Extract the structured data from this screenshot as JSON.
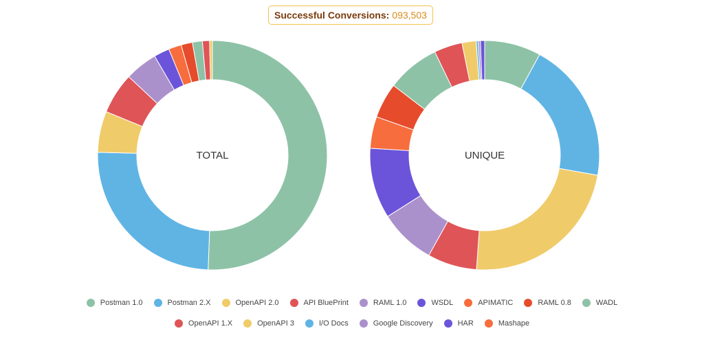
{
  "banner": {
    "label": "Successful Conversions:",
    "value": "093,503"
  },
  "chart_data": [
    {
      "type": "pie",
      "title": "TOTAL",
      "slices": [
        {
          "label": "Postman 1.0",
          "value": 50.6,
          "color": "#8dc2a6"
        },
        {
          "label": "Postman 2.X",
          "value": 24.8,
          "color": "#5fb4e4"
        },
        {
          "label": "OpenAPI 2.0",
          "value": 5.8,
          "color": "#f0cb6a"
        },
        {
          "label": "API BluePrint",
          "value": 5.8,
          "color": "#df5457"
        },
        {
          "label": "RAML 1.0",
          "value": 4.6,
          "color": "#ab91cc"
        },
        {
          "label": "WSDL",
          "value": 2.2,
          "color": "#6b54d9"
        },
        {
          "label": "APIMATIC",
          "value": 1.8,
          "color": "#f76d3d"
        },
        {
          "label": "RAML 0.8",
          "value": 1.6,
          "color": "#e64c2c"
        },
        {
          "label": "WADL",
          "value": 1.4,
          "color": "#8dc2a6"
        },
        {
          "label": "OpenAPI 1.X",
          "value": 1.0,
          "color": "#df5457"
        },
        {
          "label": "OpenAPI 3",
          "value": 0.4,
          "color": "#f0cb6a"
        }
      ]
    },
    {
      "type": "pie",
      "title": "UNIQUE",
      "slices": [
        {
          "label": "Postman 1.0",
          "value": 8.0,
          "color": "#8dc2a6"
        },
        {
          "label": "Postman 2.X",
          "value": 20.0,
          "color": "#5fb4e4"
        },
        {
          "label": "OpenAPI 2.0",
          "value": 23.5,
          "color": "#f0cb6a"
        },
        {
          "label": "API BluePrint",
          "value": 7.0,
          "color": "#df5457"
        },
        {
          "label": "RAML 1.0",
          "value": 8.0,
          "color": "#ab91cc"
        },
        {
          "label": "WSDL",
          "value": 10.0,
          "color": "#6b54d9"
        },
        {
          "label": "APIMATIC",
          "value": 4.5,
          "color": "#f76d3d"
        },
        {
          "label": "RAML 0.8",
          "value": 5.0,
          "color": "#e64c2c"
        },
        {
          "label": "WADL",
          "value": 7.5,
          "color": "#8dc2a6"
        },
        {
          "label": "OpenAPI 1.X",
          "value": 4.0,
          "color": "#df5457"
        },
        {
          "label": "OpenAPI 3",
          "value": 2.0,
          "color": "#f0cb6a"
        },
        {
          "label": "I/O Docs",
          "value": 0.3,
          "color": "#5fb4e4"
        },
        {
          "label": "Google Discovery",
          "value": 0.3,
          "color": "#ab91cc"
        },
        {
          "label": "HAR",
          "value": 0.6,
          "color": "#6b54d9"
        }
      ]
    }
  ],
  "legend": {
    "rows": [
      [
        {
          "label": "Postman 1.0",
          "color": "#8dc2a6"
        },
        {
          "label": "Postman 2.X",
          "color": "#5fb4e4"
        },
        {
          "label": "OpenAPI 2.0",
          "color": "#f0cb6a"
        },
        {
          "label": "API BluePrint",
          "color": "#df5457"
        },
        {
          "label": "RAML 1.0",
          "color": "#ab91cc"
        },
        {
          "label": "WSDL",
          "color": "#6b54d9"
        },
        {
          "label": "APIMATIC",
          "color": "#f76d3d"
        },
        {
          "label": "RAML 0.8",
          "color": "#e64c2c"
        },
        {
          "label": "WADL",
          "color": "#8dc2a6"
        }
      ],
      [
        {
          "label": "OpenAPI 1.X",
          "color": "#df5457"
        },
        {
          "label": "OpenAPI 3",
          "color": "#f0cb6a"
        },
        {
          "label": "I/O Docs",
          "color": "#5fb4e4"
        },
        {
          "label": "Google Discovery",
          "color": "#ab91cc"
        },
        {
          "label": "HAR",
          "color": "#6b54d9"
        },
        {
          "label": "Mashape",
          "color": "#f76d3d"
        }
      ]
    ]
  }
}
